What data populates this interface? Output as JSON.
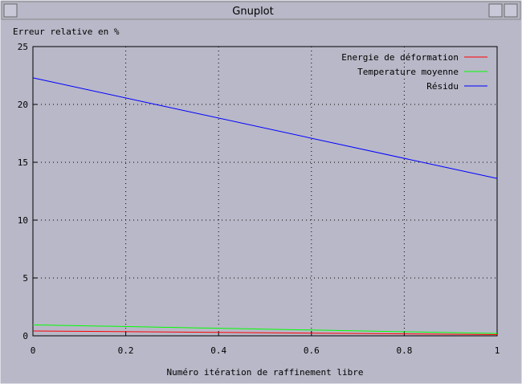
{
  "window": {
    "title": "Gnuplot"
  },
  "chart_data": {
    "type": "line",
    "ylabel": "Erreur relative en %",
    "xlabel": "Numéro itération de raffinement libre",
    "x": [
      0,
      1
    ],
    "series": [
      {
        "name": "Energie de déformation",
        "color": "#ff0000",
        "values": [
          0.42,
          0.1
        ]
      },
      {
        "name": "Temperature moyenne",
        "color": "#00ff00",
        "values": [
          0.95,
          0.2
        ]
      },
      {
        "name": "Résidu",
        "color": "#0000ff",
        "values": [
          22.3,
          13.6
        ]
      }
    ],
    "xlim": [
      0,
      1
    ],
    "xticks": [
      0,
      0.2,
      0.4,
      0.6,
      0.8,
      1
    ],
    "ylim": [
      0,
      25
    ],
    "yticks": [
      0,
      5,
      10,
      15,
      20,
      25
    ],
    "grid": true,
    "legend": "top-right"
  }
}
